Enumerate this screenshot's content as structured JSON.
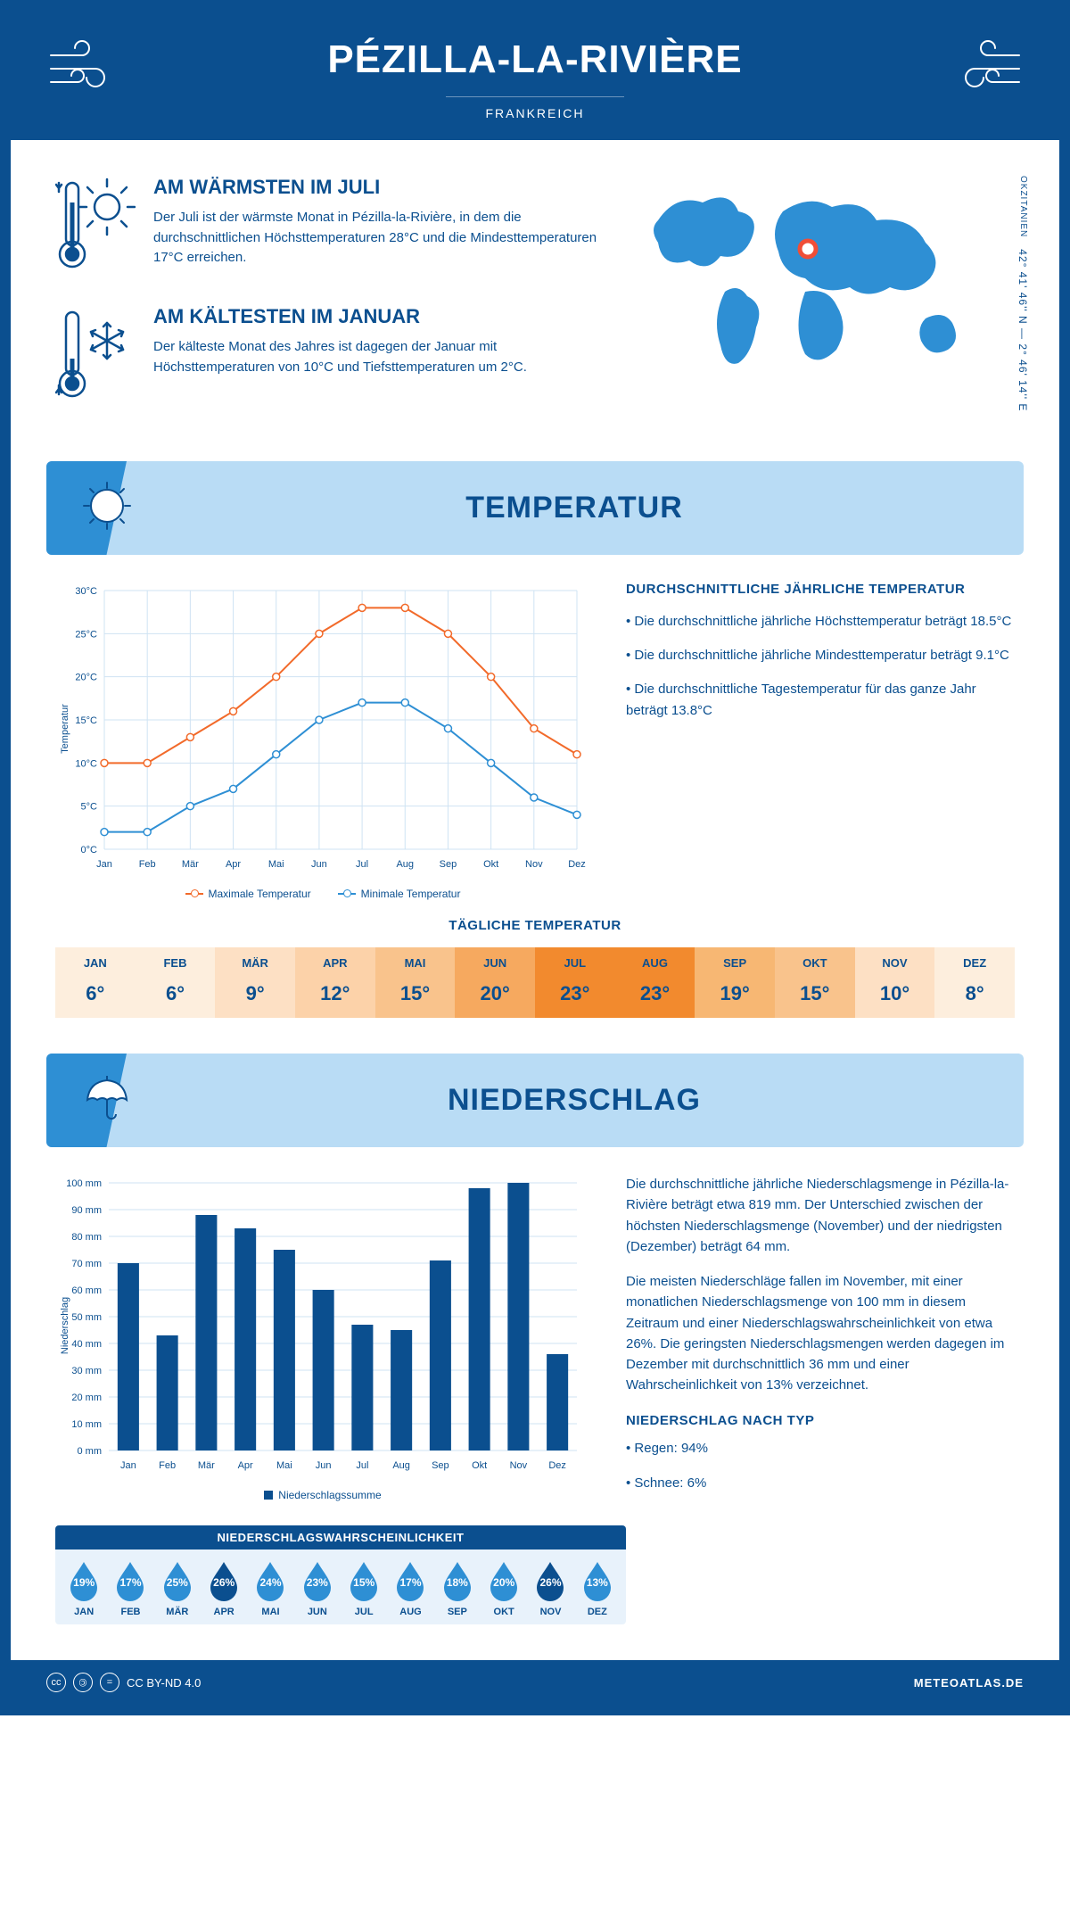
{
  "header": {
    "title": "PÉZILLA-LA-RIVIÈRE",
    "country": "FRANKREICH"
  },
  "coords": {
    "region": "OKZITANIEN",
    "lat": "42° 41' 46'' N",
    "lon": "2° 46' 14'' E"
  },
  "warmest": {
    "title": "AM WÄRMSTEN IM JULI",
    "text": "Der Juli ist der wärmste Monat in Pézilla-la-Rivière, in dem die durchschnittlichen Höchsttemperaturen 28°C und die Mindesttemperaturen 17°C erreichen."
  },
  "coldest": {
    "title": "AM KÄLTESTEN IM JANUAR",
    "text": "Der kälteste Monat des Jahres ist dagegen der Januar mit Höchsttemperaturen von 10°C und Tiefsttemperaturen um 2°C."
  },
  "temp_section": {
    "title": "TEMPERATUR"
  },
  "temp_chart": {
    "type": "line",
    "months": [
      "Jan",
      "Feb",
      "Mär",
      "Apr",
      "Mai",
      "Jun",
      "Jul",
      "Aug",
      "Sep",
      "Okt",
      "Nov",
      "Dez"
    ],
    "max_series": {
      "label": "Maximale Temperatur",
      "color": "#f26a2a",
      "values": [
        10,
        10,
        13,
        16,
        20,
        25,
        28,
        28,
        25,
        20,
        14,
        11
      ]
    },
    "min_series": {
      "label": "Minimale Temperatur",
      "color": "#2e8fd4",
      "values": [
        2,
        2,
        5,
        7,
        11,
        15,
        17,
        17,
        14,
        10,
        6,
        4
      ]
    },
    "ylabel": "Temperatur",
    "ylim": [
      0,
      30
    ],
    "ytick_step": 5,
    "y_unit": "°C",
    "grid_color": "#cfe3f3",
    "axis_color": "#0b4f8f",
    "marker": "circle",
    "marker_size": 4,
    "line_width": 2
  },
  "temp_text": {
    "title": "DURCHSCHNITTLICHE JÄHRLICHE TEMPERATUR",
    "lines": [
      "• Die durchschnittliche jährliche Höchsttemperatur beträgt 18.5°C",
      "• Die durchschnittliche jährliche Mindesttemperatur beträgt 9.1°C",
      "• Die durchschnittliche Tagestemperatur für das ganze Jahr beträgt 13.8°C"
    ]
  },
  "daily_temp": {
    "title": "TÄGLICHE TEMPERATUR",
    "months": [
      "JAN",
      "FEB",
      "MÄR",
      "APR",
      "MAI",
      "JUN",
      "JUL",
      "AUG",
      "SEP",
      "OKT",
      "NOV",
      "DEZ"
    ],
    "values": [
      "6°",
      "6°",
      "9°",
      "12°",
      "15°",
      "20°",
      "23°",
      "23°",
      "19°",
      "15°",
      "10°",
      "8°"
    ],
    "bg_colors": [
      "#fdeedd",
      "#fdeedd",
      "#fde0c4",
      "#fcd2a9",
      "#f9c38c",
      "#f6a95f",
      "#f28a2e",
      "#f28a2e",
      "#f7b773",
      "#f9c38c",
      "#fde0c4",
      "#fdeedd"
    ],
    "text_color": "#0b4f8f",
    "hot_text_color": "#0b4f8f"
  },
  "precip_section": {
    "title": "NIEDERSCHLAG"
  },
  "precip_chart": {
    "type": "bar",
    "months": [
      "Jan",
      "Feb",
      "Mär",
      "Apr",
      "Mai",
      "Jun",
      "Jul",
      "Aug",
      "Sep",
      "Okt",
      "Nov",
      "Dez"
    ],
    "values": [
      70,
      43,
      88,
      83,
      75,
      60,
      47,
      45,
      71,
      98,
      100,
      36
    ],
    "bar_color": "#0b4f8f",
    "ylabel": "Niederschlag",
    "ylim": [
      0,
      100
    ],
    "ytick_step": 10,
    "y_unit": " mm",
    "grid_color": "#cfe3f3",
    "axis_color": "#0b4f8f",
    "bar_width": 0.55,
    "legend_label": "Niederschlagssumme"
  },
  "precip_text": {
    "p1": "Die durchschnittliche jährliche Niederschlagsmenge in Pézilla-la-Rivière beträgt etwa 819 mm. Der Unterschied zwischen der höchsten Niederschlagsmenge (November) und der niedrigsten (Dezember) beträgt 64 mm.",
    "p2": "Die meisten Niederschläge fallen im November, mit einer monatlichen Niederschlagsmenge von 100 mm in diesem Zeitraum und einer Niederschlagswahrscheinlichkeit von etwa 26%. Die geringsten Niederschlagsmengen werden dagegen im Dezember mit durchschnittlich 36 mm und einer Wahrscheinlichkeit von 13% verzeichnet.",
    "type_title": "NIEDERSCHLAG NACH TYP",
    "type_lines": [
      "• Regen: 94%",
      "• Schnee: 6%"
    ]
  },
  "prob": {
    "title": "NIEDERSCHLAGSWAHRSCHEINLICHKEIT",
    "months": [
      "JAN",
      "FEB",
      "MÄR",
      "APR",
      "MAI",
      "JUN",
      "JUL",
      "AUG",
      "SEP",
      "OKT",
      "NOV",
      "DEZ"
    ],
    "values": [
      "19%",
      "17%",
      "25%",
      "26%",
      "24%",
      "23%",
      "15%",
      "17%",
      "18%",
      "20%",
      "26%",
      "13%"
    ],
    "light_color": "#2e8fd4",
    "dark_color": "#0b4f8f",
    "dark_indices": [
      3,
      10
    ]
  },
  "footer": {
    "license": "CC BY-ND 4.0",
    "site": "METEOATLAS.DE"
  },
  "colors": {
    "primary": "#0b4f8f",
    "accent": "#2e8fd4",
    "light_blue": "#b9dcf5",
    "orange": "#f26a2a",
    "marker_red": "#f04e37"
  }
}
